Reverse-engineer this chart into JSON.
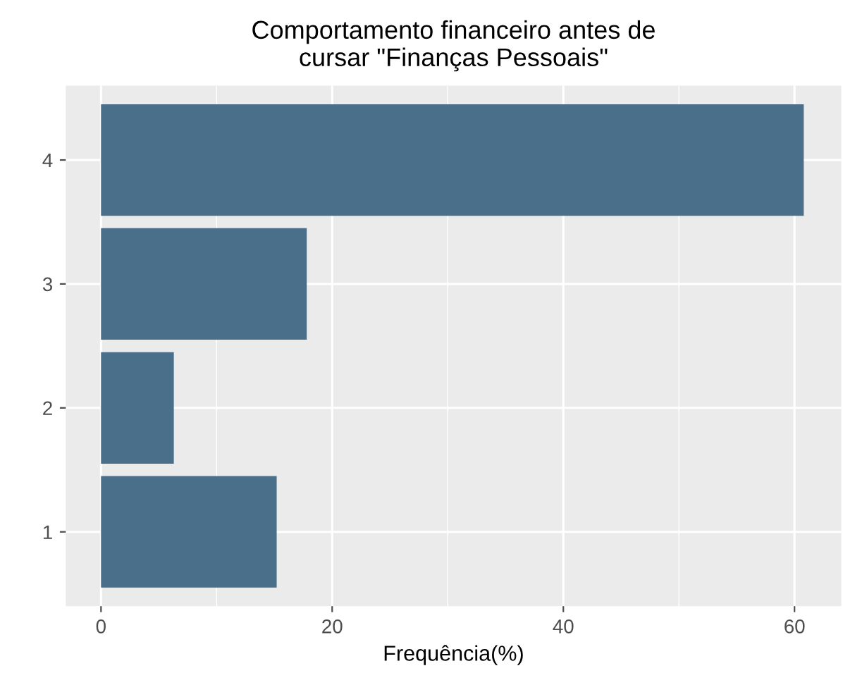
{
  "chart_data": {
    "type": "bar",
    "orientation": "horizontal",
    "title": "Comportamento financeiro antes de\ncursar \"Finanças Pessoais\"",
    "xlabel": "Frequência(%)",
    "categories": [
      "4",
      "3",
      "2",
      "1"
    ],
    "values": [
      60.8,
      17.8,
      6.3,
      15.2
    ],
    "color": "#4a6f8a",
    "xlim": [
      -3.05,
      64.05
    ],
    "xticks": [
      0,
      20,
      40,
      60
    ],
    "grid": true
  }
}
